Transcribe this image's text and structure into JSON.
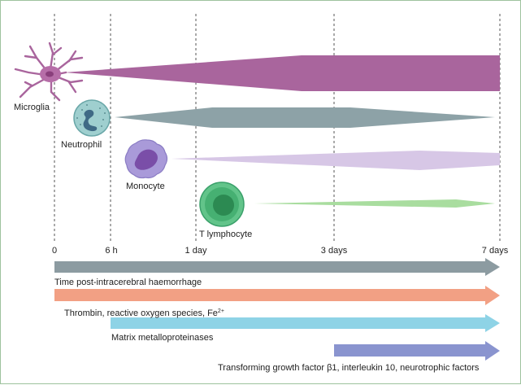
{
  "cells": {
    "microglia": {
      "label": "Microglia",
      "color": "#a9659d"
    },
    "neutrophil": {
      "label": "Neutrophil",
      "color": "#8da2a7"
    },
    "monocyte": {
      "label": "Monocyte",
      "color": "#c2aed9"
    },
    "t_lymphocyte": {
      "label": "T lymphocyte",
      "color": "#9fd89a"
    }
  },
  "timeline": {
    "ticks": [
      "0",
      "6 h",
      "1 day",
      "3 days",
      "7 days"
    ],
    "axis_label": "Time post-intracerebral haemorrhage",
    "axis_color": "#8c9ba1"
  },
  "factors": [
    {
      "label": "Thrombin, reactive oxygen species, Fe",
      "sup": "2+",
      "color": "#f2a084"
    },
    {
      "label": "Matrix metalloproteinases",
      "color": "#8ed3e6"
    },
    {
      "label": "Transforming growth factor β1, interleukin 10, neurotrophic factors",
      "color": "#8a94cf"
    }
  ]
}
